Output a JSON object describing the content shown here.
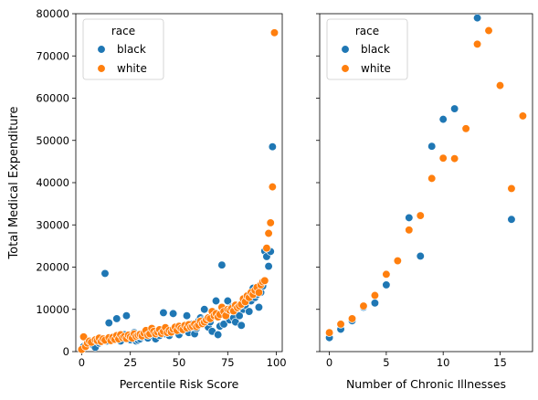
{
  "colors": {
    "black": "#1f77b4",
    "white": "#ff7f0e"
  },
  "shared_ylabel": "Total Medical Expenditure",
  "chart_data": [
    {
      "type": "scatter",
      "xlabel": "Percentile Risk Score",
      "ylabel": "Total Medical Expenditure",
      "xlim": [
        -3,
        103
      ],
      "ylim": [
        0,
        80000
      ],
      "xticks": [
        0,
        25,
        50,
        75,
        100
      ],
      "yticks": [
        0,
        10000,
        20000,
        30000,
        40000,
        50000,
        60000,
        70000,
        80000
      ],
      "grid": false,
      "legend": {
        "title": "race",
        "entries": [
          "black",
          "white"
        ],
        "placement": "upper-left"
      },
      "series": [
        {
          "name": "black",
          "points": [
            [
              1,
              1200
            ],
            [
              3,
              1700
            ],
            [
              5,
              2100
            ],
            [
              6,
              1500
            ],
            [
              7,
              1000
            ],
            [
              8,
              2500
            ],
            [
              9,
              2000
            ],
            [
              10,
              2300
            ],
            [
              11,
              2800
            ],
            [
              12,
              18500
            ],
            [
              13,
              2500
            ],
            [
              14,
              6800
            ],
            [
              15,
              3000
            ],
            [
              16,
              2800
            ],
            [
              17,
              3500
            ],
            [
              18,
              7800
            ],
            [
              19,
              3200
            ],
            [
              20,
              2500
            ],
            [
              21,
              3500
            ],
            [
              22,
              4000
            ],
            [
              23,
              8500
            ],
            [
              24,
              3000
            ],
            [
              25,
              2800
            ],
            [
              26,
              3800
            ],
            [
              27,
              4500
            ],
            [
              28,
              2500
            ],
            [
              29,
              2700
            ],
            [
              30,
              3000
            ],
            [
              31,
              3500
            ],
            [
              32,
              3800
            ],
            [
              33,
              4500
            ],
            [
              34,
              3200
            ],
            [
              35,
              4000
            ],
            [
              36,
              4200
            ],
            [
              37,
              3600
            ],
            [
              38,
              3000
            ],
            [
              39,
              4500
            ],
            [
              40,
              3800
            ],
            [
              42,
              9200
            ],
            [
              43,
              4200
            ],
            [
              44,
              5000
            ],
            [
              45,
              3800
            ],
            [
              46,
              4600
            ],
            [
              47,
              9000
            ],
            [
              48,
              5000
            ],
            [
              50,
              4000
            ],
            [
              52,
              5000
            ],
            [
              54,
              8500
            ],
            [
              55,
              4500
            ],
            [
              56,
              6500
            ],
            [
              58,
              4200
            ],
            [
              59,
              5500
            ],
            [
              60,
              7200
            ],
            [
              61,
              8000
            ],
            [
              62,
              7500
            ],
            [
              63,
              10000
            ],
            [
              65,
              5800
            ],
            [
              66,
              7000
            ],
            [
              67,
              4800
            ],
            [
              68,
              9000
            ],
            [
              69,
              12000
            ],
            [
              70,
              4000
            ],
            [
              71,
              6000
            ],
            [
              72,
              20500
            ],
            [
              73,
              6500
            ],
            [
              74,
              8500
            ],
            [
              75,
              12000
            ],
            [
              76,
              7500
            ],
            [
              77,
              10500
            ],
            [
              78,
              8000
            ],
            [
              79,
              7000
            ],
            [
              80,
              9800
            ],
            [
              81,
              8500
            ],
            [
              82,
              6200
            ],
            [
              83,
              10000
            ],
            [
              84,
              11000
            ],
            [
              85,
              13000
            ],
            [
              86,
              9500
            ],
            [
              87,
              12000
            ],
            [
              88,
              15000
            ],
            [
              89,
              12800
            ],
            [
              90,
              13500
            ],
            [
              91,
              10500
            ],
            [
              92,
              14000
            ],
            [
              93,
              15500
            ],
            [
              94,
              23800
            ],
            [
              95,
              22500
            ],
            [
              96,
              20200
            ],
            [
              97,
              23700
            ],
            [
              98,
              48500
            ]
          ]
        },
        {
          "name": "white",
          "points": [
            [
              0,
              500
            ],
            [
              1,
              3500
            ],
            [
              2,
              1200
            ],
            [
              3,
              2000
            ],
            [
              4,
              2500
            ],
            [
              5,
              2200
            ],
            [
              7,
              2800
            ],
            [
              8,
              2600
            ],
            [
              9,
              3200
            ],
            [
              10,
              2400
            ],
            [
              11,
              3000
            ],
            [
              12,
              2700
            ],
            [
              14,
              3300
            ],
            [
              15,
              2600
            ],
            [
              16,
              3400
            ],
            [
              17,
              2900
            ],
            [
              18,
              3800
            ],
            [
              19,
              3000
            ],
            [
              20,
              4000
            ],
            [
              21,
              3300
            ],
            [
              22,
              3600
            ],
            [
              23,
              3100
            ],
            [
              24,
              3900
            ],
            [
              25,
              3500
            ],
            [
              26,
              3200
            ],
            [
              27,
              4200
            ],
            [
              28,
              3600
            ],
            [
              29,
              3900
            ],
            [
              30,
              4100
            ],
            [
              31,
              3700
            ],
            [
              32,
              4400
            ],
            [
              33,
              5000
            ],
            [
              34,
              3900
            ],
            [
              35,
              4200
            ],
            [
              36,
              5500
            ],
            [
              37,
              4800
            ],
            [
              38,
              4200
            ],
            [
              39,
              4600
            ],
            [
              40,
              5200
            ],
            [
              41,
              4300
            ],
            [
              42,
              4800
            ],
            [
              43,
              5700
            ],
            [
              44,
              4500
            ],
            [
              45,
              5000
            ],
            [
              46,
              4600
            ],
            [
              47,
              5300
            ],
            [
              48,
              5800
            ],
            [
              49,
              5000
            ],
            [
              50,
              6000
            ],
            [
              51,
              5500
            ],
            [
              52,
              5200
            ],
            [
              53,
              6200
            ],
            [
              54,
              5600
            ],
            [
              55,
              6400
            ],
            [
              56,
              5800
            ],
            [
              57,
              6000
            ],
            [
              58,
              6500
            ],
            [
              59,
              5900
            ],
            [
              60,
              6300
            ],
            [
              61,
              7200
            ],
            [
              62,
              6600
            ],
            [
              63,
              7000
            ],
            [
              64,
              7500
            ],
            [
              65,
              8000
            ],
            [
              66,
              7800
            ],
            [
              67,
              9500
            ],
            [
              68,
              8500
            ],
            [
              69,
              9000
            ],
            [
              70,
              8200
            ],
            [
              71,
              8800
            ],
            [
              72,
              10500
            ],
            [
              73,
              9500
            ],
            [
              74,
              8500
            ],
            [
              75,
              10000
            ],
            [
              76,
              9800
            ],
            [
              77,
              10200
            ],
            [
              78,
              9600
            ],
            [
              79,
              11000
            ],
            [
              80,
              10400
            ],
            [
              81,
              10800
            ],
            [
              82,
              11200
            ],
            [
              83,
              12500
            ],
            [
              84,
              11800
            ],
            [
              85,
              13200
            ],
            [
              86,
              12800
            ],
            [
              87,
              14000
            ],
            [
              88,
              13500
            ],
            [
              89,
              14500
            ],
            [
              90,
              15200
            ],
            [
              91,
              14000
            ],
            [
              92,
              15800
            ],
            [
              93,
              16500
            ],
            [
              94,
              16800
            ],
            [
              95,
              24500
            ],
            [
              96,
              28000
            ],
            [
              97,
              30500
            ],
            [
              98,
              39000
            ],
            [
              99,
              75500
            ]
          ]
        }
      ]
    },
    {
      "type": "scatter",
      "xlabel": "Number of Chronic Illnesses",
      "ylabel": "",
      "xlim": [
        -0.85,
        17.85
      ],
      "ylim": [
        0,
        80000
      ],
      "xticks": [
        0,
        5,
        10,
        15
      ],
      "yticks": [
        0,
        10000,
        20000,
        30000,
        40000,
        50000,
        60000,
        70000,
        80000
      ],
      "grid": false,
      "legend": {
        "title": "race",
        "entries": [
          "black",
          "white"
        ],
        "placement": "upper-left"
      },
      "series": [
        {
          "name": "black",
          "points": [
            [
              0,
              3300
            ],
            [
              1,
              5300
            ],
            [
              2,
              7300
            ],
            [
              3,
              10500
            ],
            [
              4,
              11500
            ],
            [
              5,
              15800
            ],
            [
              7,
              31700
            ],
            [
              8,
              22600
            ],
            [
              9,
              48600
            ],
            [
              10,
              55000
            ],
            [
              11,
              57500
            ],
            [
              13,
              79000
            ],
            [
              16,
              31300
            ]
          ]
        },
        {
          "name": "white",
          "points": [
            [
              0,
              4500
            ],
            [
              1,
              6500
            ],
            [
              2,
              7800
            ],
            [
              3,
              10800
            ],
            [
              4,
              13300
            ],
            [
              5,
              18300
            ],
            [
              6,
              21500
            ],
            [
              7,
              28800
            ],
            [
              8,
              32200
            ],
            [
              9,
              41000
            ],
            [
              10,
              45800
            ],
            [
              11,
              45700
            ],
            [
              12,
              52800
            ],
            [
              13,
              72800
            ],
            [
              14,
              76000
            ],
            [
              15,
              63000
            ],
            [
              16,
              38600
            ],
            [
              17,
              55800
            ]
          ]
        }
      ]
    }
  ]
}
